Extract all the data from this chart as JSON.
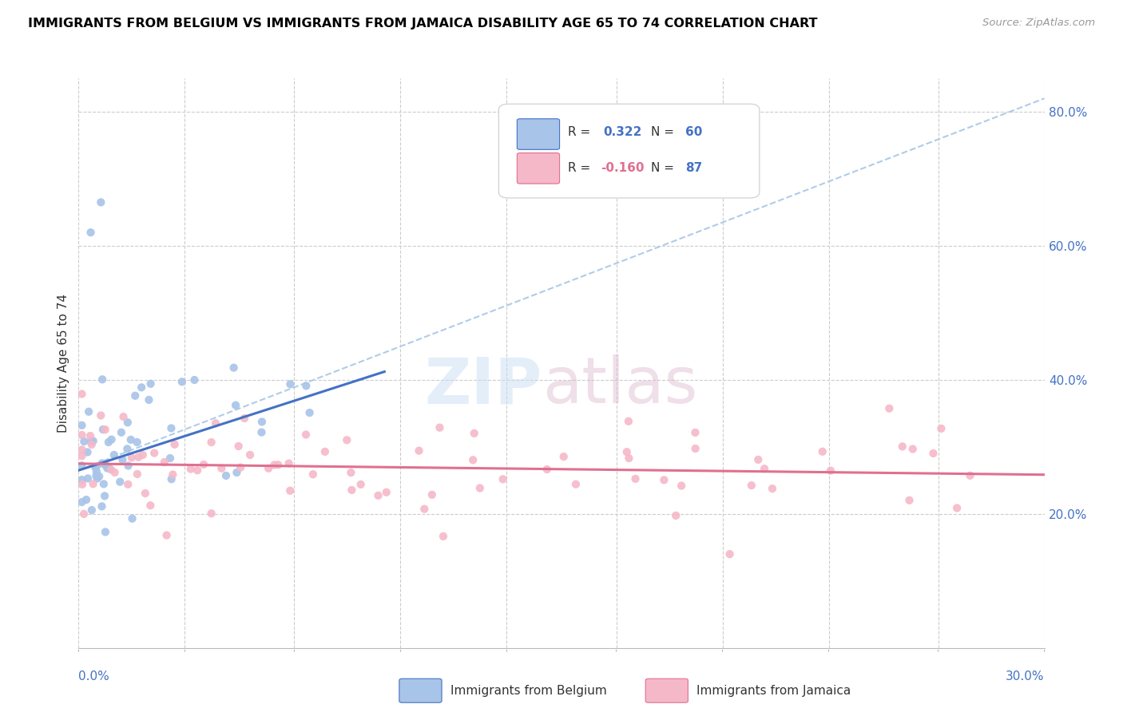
{
  "title": "IMMIGRANTS FROM BELGIUM VS IMMIGRANTS FROM JAMAICA DISABILITY AGE 65 TO 74 CORRELATION CHART",
  "source": "Source: ZipAtlas.com",
  "ylabel": "Disability Age 65 to 74",
  "ylabel_right_ticks": [
    "20.0%",
    "40.0%",
    "60.0%",
    "80.0%"
  ],
  "ylabel_right_values": [
    0.2,
    0.4,
    0.6,
    0.8
  ],
  "xlim": [
    0.0,
    0.3
  ],
  "ylim": [
    0.0,
    0.85
  ],
  "belgium_color": "#a8c4e8",
  "jamaica_color": "#f5b8c8",
  "belgium_line_color": "#4472c4",
  "jamaica_line_color": "#e07090",
  "dashed_line_color": "#b0cce8",
  "belgium_intercept": 0.265,
  "belgium_slope": 1.55,
  "jamaica_intercept": 0.275,
  "jamaica_slope": -0.055,
  "dashed_intercept": 0.265,
  "dashed_slope": 1.85,
  "belgium_N": 60,
  "jamaica_N": 87,
  "belgium_R": "0.322",
  "jamaica_R": "-0.160",
  "x_ticks": [
    0.0,
    0.033,
    0.067,
    0.1,
    0.133,
    0.167,
    0.2,
    0.233,
    0.267,
    0.3
  ]
}
